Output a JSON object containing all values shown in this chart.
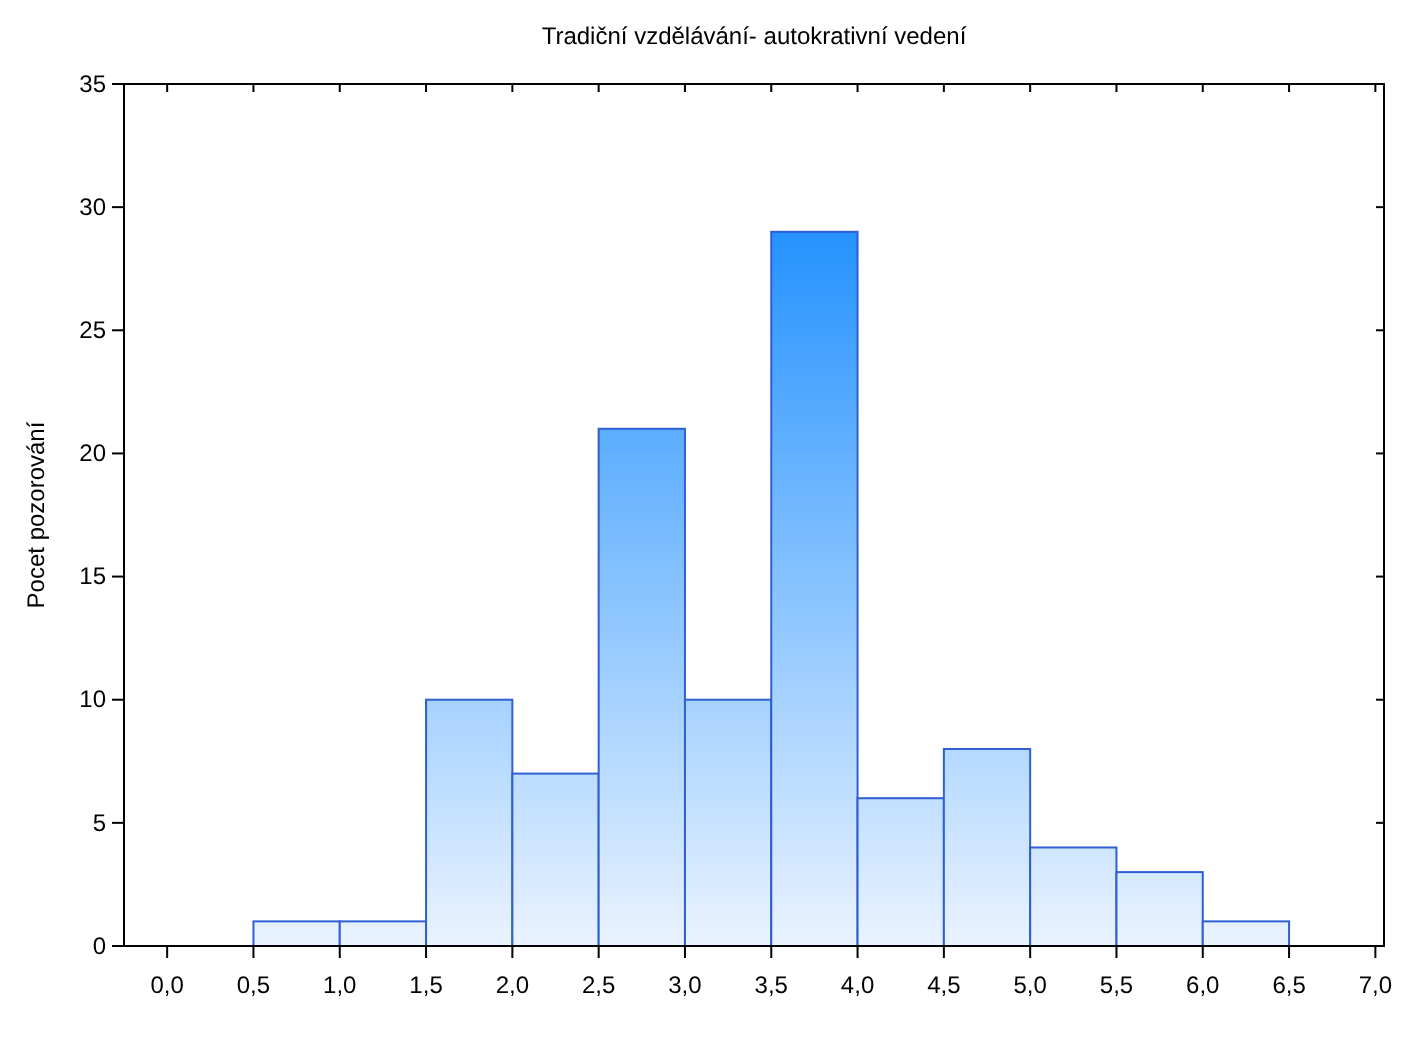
{
  "chart_data": {
    "type": "histogram",
    "title": "Tradiční vzdělávání- autokrativní vedení",
    "ylabel": "Pocet pozorování",
    "bins": [
      0.5,
      1.0,
      1.5,
      2.0,
      2.5,
      3.0,
      3.5,
      4.0,
      4.5,
      5.0,
      5.5,
      6.0,
      6.5
    ],
    "values": [
      1,
      1,
      10,
      7,
      21,
      10,
      29,
      6,
      8,
      4,
      3,
      1
    ],
    "color": "#2f5fd0",
    "xlim": [
      -0.25,
      7.05
    ],
    "xticks": [
      {
        "value": 0,
        "label": "0,0"
      },
      {
        "value": 0.5,
        "label": "0,5"
      },
      {
        "value": 1,
        "label": "1,0"
      },
      {
        "value": 1.5,
        "label": "1,5"
      },
      {
        "value": 2,
        "label": "2,0"
      },
      {
        "value": 2.5,
        "label": "2,5"
      },
      {
        "value": 3,
        "label": "3,0"
      },
      {
        "value": 3.5,
        "label": "3,5"
      },
      {
        "value": 4,
        "label": "4,0"
      },
      {
        "value": 4.5,
        "label": "4,5"
      },
      {
        "value": 5,
        "label": "5,0"
      },
      {
        "value": 5.5,
        "label": "5,5"
      },
      {
        "value": 6,
        "label": "6,0"
      },
      {
        "value": 6.5,
        "label": "6,5"
      },
      {
        "value": 7,
        "label": "7,0"
      }
    ],
    "ylim": [
      0,
      35
    ],
    "yticks": [
      0,
      5,
      10,
      15,
      20,
      25,
      30,
      35
    ],
    "grid": false
  }
}
